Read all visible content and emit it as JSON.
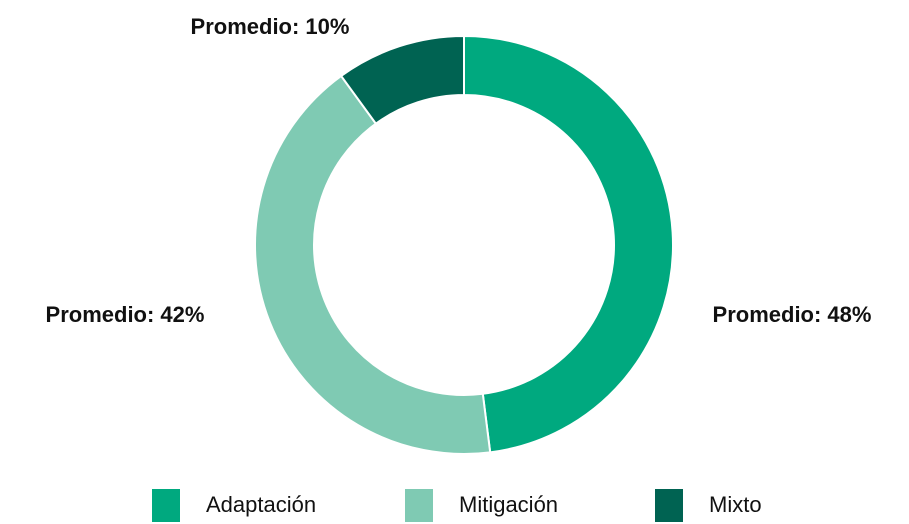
{
  "chart_data": {
    "type": "pie",
    "categories": [
      "Adaptación",
      "Mitigación",
      "Mixto"
    ],
    "values": [
      48,
      42,
      10
    ],
    "value_labels": [
      "Promedio: 48%",
      "Promedio: 42%",
      "Promedio: 10%"
    ],
    "colors": [
      "#00a97f",
      "#7fcab3",
      "#006352"
    ],
    "legend": "bottom"
  }
}
